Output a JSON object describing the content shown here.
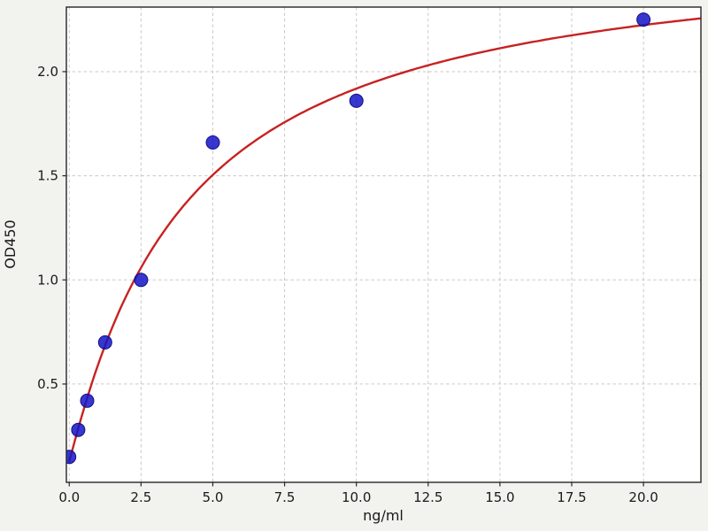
{
  "chart_data": {
    "type": "scatter",
    "title": "",
    "xlabel": "ng/ml",
    "ylabel": "OD450",
    "xlim": [
      -0.1,
      22.0
    ],
    "ylim": [
      0.028,
      2.31
    ],
    "grid": true,
    "grid_style": "dashed",
    "legend": "none",
    "x_ticks": [
      0.0,
      2.5,
      5.0,
      7.5,
      10.0,
      12.5,
      15.0,
      17.5,
      20.0
    ],
    "x_tick_labels": [
      "0.0",
      "2.5",
      "5.0",
      "7.5",
      "10.0",
      "12.5",
      "15.0",
      "17.5",
      "20.0"
    ],
    "y_ticks": [
      0.5,
      1.0,
      1.5,
      2.0
    ],
    "y_tick_labels": [
      "0.5",
      "1.0",
      "1.5",
      "2.0"
    ],
    "series": [
      {
        "name": "standard-points",
        "type": "scatter",
        "x": [
          0,
          0.313,
          0.625,
          1.25,
          2.5,
          5,
          10,
          20
        ],
        "y": [
          0.15,
          0.28,
          0.42,
          0.7,
          1.0,
          1.66,
          1.86,
          2.25
        ],
        "color": "#1414c8"
      },
      {
        "name": "4pl-fit-curve",
        "type": "line",
        "model": "4PL",
        "params": {
          "a": 0.13,
          "b": 1.05,
          "c": 4.1,
          "d": 2.62
        },
        "x_range": [
          0,
          22
        ],
        "color": "#c72222"
      }
    ],
    "colors": {
      "figure_background": "#f2f2ee",
      "plot_background": "#ffffff",
      "grid": "#c9c9c9",
      "axis": "#262626",
      "point": "#1414c8",
      "point_edge": "#101080",
      "curve": "#c72222",
      "text": "#1a1a1a"
    }
  }
}
